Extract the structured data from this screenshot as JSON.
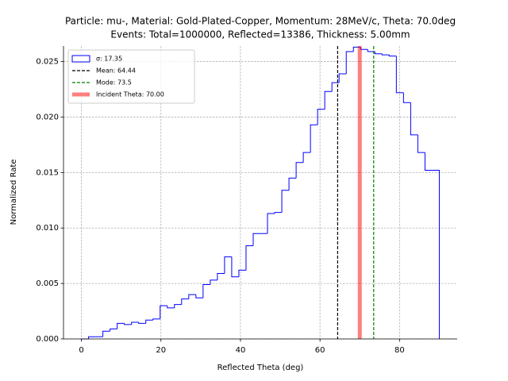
{
  "chart_data": {
    "type": "histogram",
    "title": "Particle: mu-, Material: Gold-Plated-Copper, Momentum: 28MeV/c, Theta: 70.0deg",
    "subtitle": "Events: Total=1000000, Reflected=13386, Thickness: 5.00mm",
    "x_label": "Reflected Theta (deg)",
    "y_label": "Normalized Rate",
    "bins": [
      0,
      1.8,
      3.6,
      5.4,
      7.2,
      9,
      10.8,
      12.6,
      14.4,
      16.2,
      18,
      19.8,
      21.6,
      23.4,
      25.2,
      27,
      28.8,
      30.6,
      32.4,
      34.2,
      36,
      37.8,
      39.6,
      41.4,
      43.2,
      45,
      46.8,
      48.6,
      50.4,
      52.2,
      54,
      55.8,
      57.6,
      59.4,
      61.2,
      63,
      64.8,
      66.6,
      68.4,
      70.2,
      72,
      73.8,
      75.6,
      77.4,
      79.2,
      81,
      82.8,
      84.6,
      86.4,
      88.2,
      90
    ],
    "series": [
      {
        "name": "σ: 17.35",
        "color": "#0000ff",
        "values": [
          0,
          0.0002,
          0.0002,
          0.0007,
          0.0009,
          0.0014,
          0.0013,
          0.0015,
          0.0014,
          0.0017,
          0.0018,
          0.003,
          0.0028,
          0.0031,
          0.0036,
          0.004,
          0.0037,
          0.0049,
          0.0053,
          0.0059,
          0.0074,
          0.0056,
          0.0062,
          0.0084,
          0.0095,
          0.0095,
          0.0113,
          0.0114,
          0.0134,
          0.0145,
          0.0159,
          0.0168,
          0.0193,
          0.0207,
          0.0223,
          0.0231,
          0.0239,
          0.0259,
          0.0263,
          0.0261,
          0.0259,
          0.0257,
          0.0256,
          0.0255,
          0.0222,
          0.0213,
          0.0184,
          0.0168,
          0.0152,
          0.0152
        ]
      }
    ],
    "vlines": [
      {
        "name": "Mean: 64.44",
        "x": 64.44,
        "color": "#000000",
        "style": "dashed"
      },
      {
        "name": "Mode: 73.5",
        "x": 73.5,
        "color": "#008000",
        "style": "dashed"
      },
      {
        "name": "Incident Theta: 70.00",
        "x": 70,
        "color": "#ff0000",
        "style": "thick"
      }
    ],
    "xlim": [
      -4.5,
      94.5
    ],
    "ylim": [
      0,
      0.0264
    ],
    "xticks": [
      0,
      20,
      40,
      60,
      80
    ],
    "yticks": [
      {
        "value": 0,
        "label": "0.000"
      },
      {
        "value": 0.005,
        "label": "0.005"
      },
      {
        "value": 0.01,
        "label": "0.010"
      },
      {
        "value": 0.015,
        "label": "0.015"
      },
      {
        "value": 0.02,
        "label": "0.020"
      },
      {
        "value": 0.025,
        "label": "0.025"
      }
    ],
    "grid": true,
    "legend": "upper left"
  }
}
